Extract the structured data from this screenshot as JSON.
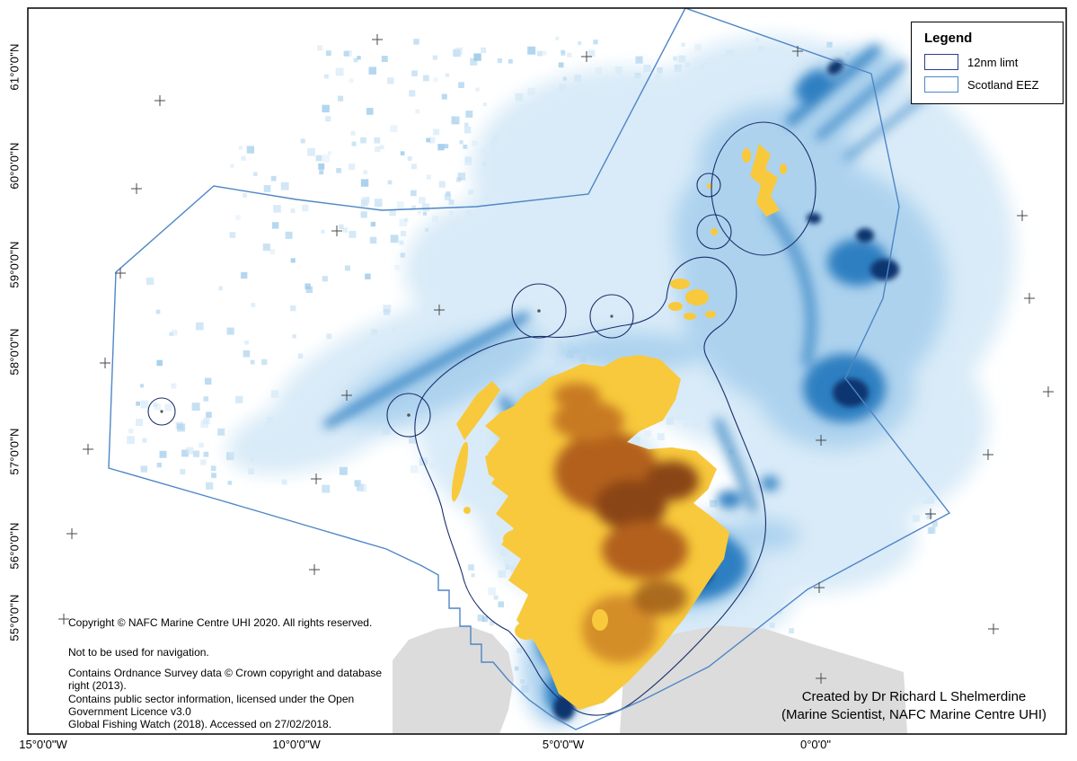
{
  "legend": {
    "title": "Legend",
    "items": [
      {
        "label": "12nm limt",
        "outline_color": "#2a3f8f"
      },
      {
        "label": "Scotland EEZ",
        "outline_color": "#4f86c6"
      }
    ]
  },
  "axes": {
    "latitude": [
      "61°0'0\"N",
      "60°0'0\"N",
      "59°0'0\"N",
      "58°0'0\"N",
      "57°0'0\"N",
      "56°0'0\"N",
      "55°0'0\"N"
    ],
    "longitude": [
      "15°0'0\"W",
      "10°0'0\"W",
      "5°0'0\"W",
      "0°0'0\""
    ]
  },
  "notes": {
    "copyright": "Copyright © NAFC Marine Centre UHI 2020.  All rights reserved.",
    "navigation": "Not to be used for navigation.",
    "ordnance": "Contains Ordnance Survey data © Crown copyright and database right (2013).",
    "open_gov": "Contains public sector information, licensed under the Open Government Licence v3.0",
    "gfw": "Global Fishing Watch (2018). Accessed on 27/02/2018."
  },
  "credit": {
    "line1": "Created by Dr Richard L Shelmerdine",
    "line2": "(Marine Scientist, NAFC Marine Centre UHI)"
  },
  "map": {
    "description": "Fishing activity heatmap (Global Fishing Watch) around Scotland with EEZ and 12nm limit boundaries",
    "colors": {
      "heat_low": "#d9ebf8",
      "heat_mid": "#abd1ee",
      "heat_high": "#2f7fc1",
      "heat_max": "#0a3570",
      "land": "#f8c93c",
      "terrain": "#b2601e",
      "terrain_dark": "#8a4512",
      "terrain_light": "#c87a22",
      "other_land": "#dcdcdc",
      "eez": "#4f86c6",
      "nm12": "#1b2f6b"
    }
  }
}
